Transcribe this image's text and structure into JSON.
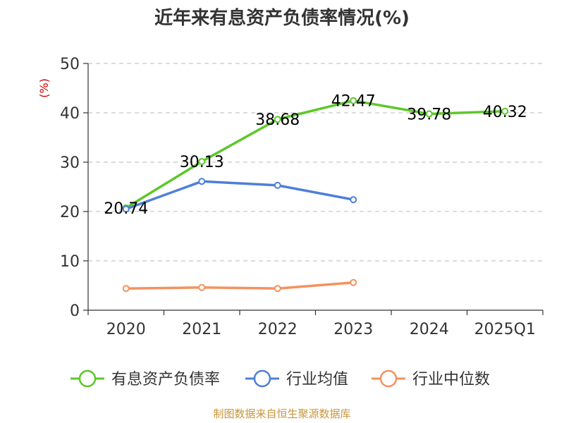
{
  "chart_data": {
    "type": "line",
    "title": "近年来有息资产负债率情况(%)",
    "ylabel": "(%)",
    "xlabel": "",
    "categories": [
      "2020",
      "2021",
      "2022",
      "2023",
      "2024",
      "2025Q1"
    ],
    "ylim": [
      0,
      50
    ],
    "yticks": [
      0,
      10,
      20,
      30,
      40,
      50
    ],
    "grid": true,
    "legend_position": "bottom",
    "series": [
      {
        "name": "有息资产负债率",
        "color": "#5cc82a",
        "values": [
          20.74,
          30.13,
          38.68,
          42.47,
          39.78,
          40.32
        ],
        "labels": [
          "20.74",
          "30.13",
          "38.68",
          "42.47",
          "39.78",
          "40.32"
        ]
      },
      {
        "name": "行业均值",
        "color": "#4d7fd9",
        "values": [
          20.5,
          26.1,
          25.3,
          22.4,
          null,
          null
        ]
      },
      {
        "name": "行业中位数",
        "color": "#f4925e",
        "values": [
          4.4,
          4.6,
          4.4,
          5.6,
          null,
          null
        ]
      }
    ]
  },
  "footer": "制图数据来自恒生聚源数据库"
}
